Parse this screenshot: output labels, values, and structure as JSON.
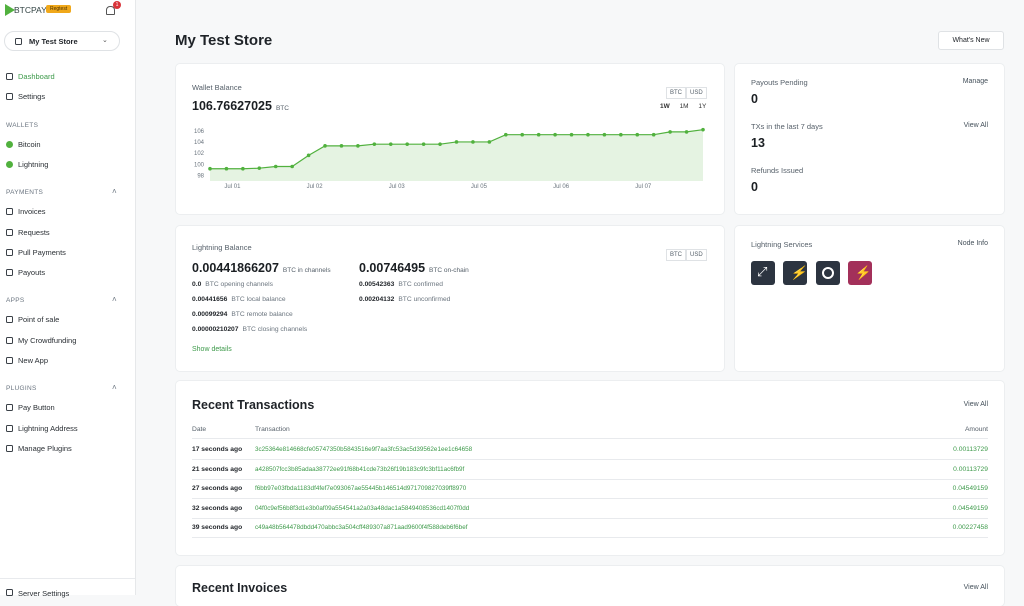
{
  "sidebar": {
    "logo": "BTCPAY",
    "badge": "Regtest",
    "notifications": "1",
    "store": "My Test Store",
    "nav": [
      {
        "items": [
          "Dashboard",
          "Settings"
        ]
      },
      {
        "title": "WALLETS",
        "items": [
          "Bitcoin",
          "Lightning"
        ]
      },
      {
        "title": "PAYMENTS",
        "items": [
          "Invoices",
          "Requests",
          "Pull Payments",
          "Payouts"
        ]
      },
      {
        "title": "APPS",
        "items": [
          "Point of sale",
          "My Crowdfunding",
          "New App"
        ]
      },
      {
        "title": "PLUGINS",
        "items": [
          "Pay Button",
          "Lightning Address",
          "Manage Plugins"
        ]
      }
    ],
    "footer": "Server Settings"
  },
  "header": {
    "title": "My Test Store",
    "button": "What's New"
  },
  "wallet": {
    "label": "Wallet Balance",
    "toggles": [
      "BTC",
      "USD"
    ],
    "balance": "106.76627025",
    "unit": "BTC",
    "ranges": [
      "1W",
      "1M",
      "1Y"
    ]
  },
  "chart_data": {
    "type": "line",
    "categories": [
      null,
      "Jul 01",
      null,
      null,
      null,
      null,
      "Jul 02",
      null,
      null,
      null,
      null,
      "Jul 03",
      null,
      null,
      null,
      null,
      "Jul 05",
      null,
      null,
      null,
      null,
      "Jul 06",
      null,
      null,
      null,
      null,
      "Jul 07",
      null,
      null,
      null,
      null
    ],
    "values": [
      99.2,
      99.2,
      99.2,
      99.3,
      99.6,
      99.6,
      101.6,
      103.3,
      103.3,
      103.3,
      103.6,
      103.6,
      103.6,
      103.6,
      103.6,
      104.0,
      104.0,
      104.0,
      105.3,
      105.3,
      105.3,
      105.3,
      105.3,
      105.3,
      105.3,
      105.3,
      105.3,
      105.3,
      105.8,
      105.8,
      106.2
    ],
    "color": "#51b13e",
    "area": true,
    "ylim": [
      97,
      106.5
    ],
    "yticks": [
      98,
      100,
      102,
      104,
      106
    ]
  },
  "payouts": {
    "items": [
      {
        "label": "Payouts Pending",
        "value": "0",
        "link": "Manage"
      },
      {
        "label": "TXs in the last 7 days",
        "value": "13",
        "link": "View All"
      },
      {
        "label": "Refunds Issued",
        "value": "0"
      }
    ]
  },
  "lightning": {
    "label": "Lightning Balance",
    "toggles": [
      "BTC",
      "USD"
    ],
    "channels": {
      "value": "0.00441866207",
      "unit": "BTC in channels"
    },
    "details": [
      {
        "value": "0.0",
        "label": "BTC opening channels"
      },
      {
        "value": "0.00441656",
        "label": "BTC local balance"
      },
      {
        "value": "0.00099294",
        "label": "BTC remote balance"
      },
      {
        "value": "0.00000210207",
        "label": "BTC closing channels"
      }
    ],
    "onchain": {
      "value": "0.00746495",
      "unit": "BTC on-chain"
    },
    "onchain_details": [
      {
        "value": "0.00542363",
        "label": "BTC confirmed"
      },
      {
        "value": "0.00204132",
        "label": "BTC unconfirmed"
      }
    ],
    "link": "Show details"
  },
  "services": {
    "title": "Lightning Services",
    "link": "Node Info"
  },
  "transactions": {
    "title": "Recent Transactions",
    "link": "View All",
    "columns": [
      "Date",
      "Transaction",
      "Amount"
    ],
    "rows": [
      [
        "17 seconds ago",
        "3c25364e814668cfe05747350b5843516e9f7aa3fc53ac5d39562e1ee1c64658",
        "0.00113729"
      ],
      [
        "21 seconds ago",
        "a428507fcc3b85adaa38772ee91f68b41cde73b26f19b183c9fc3bf11ac6fb9f",
        "0.00113729"
      ],
      [
        "27 seconds ago",
        "f6bb97e03fbda1183df4fef7e093067ae55445b146514d971709827039ff8970",
        "0.04549159"
      ],
      [
        "32 seconds ago",
        "04f0c9ef56b8f3d1e3b0af09a554541a2a03a48dac1a5849408536cd1407f0dd",
        "0.04549159"
      ],
      [
        "39 seconds ago",
        "c49a48b564478dbdd470abbc3a504cff489307a871aad9600f4f588deb6f6bef",
        "0.00227458"
      ]
    ]
  },
  "invoices": {
    "title": "Recent Invoices",
    "link": "View All"
  }
}
